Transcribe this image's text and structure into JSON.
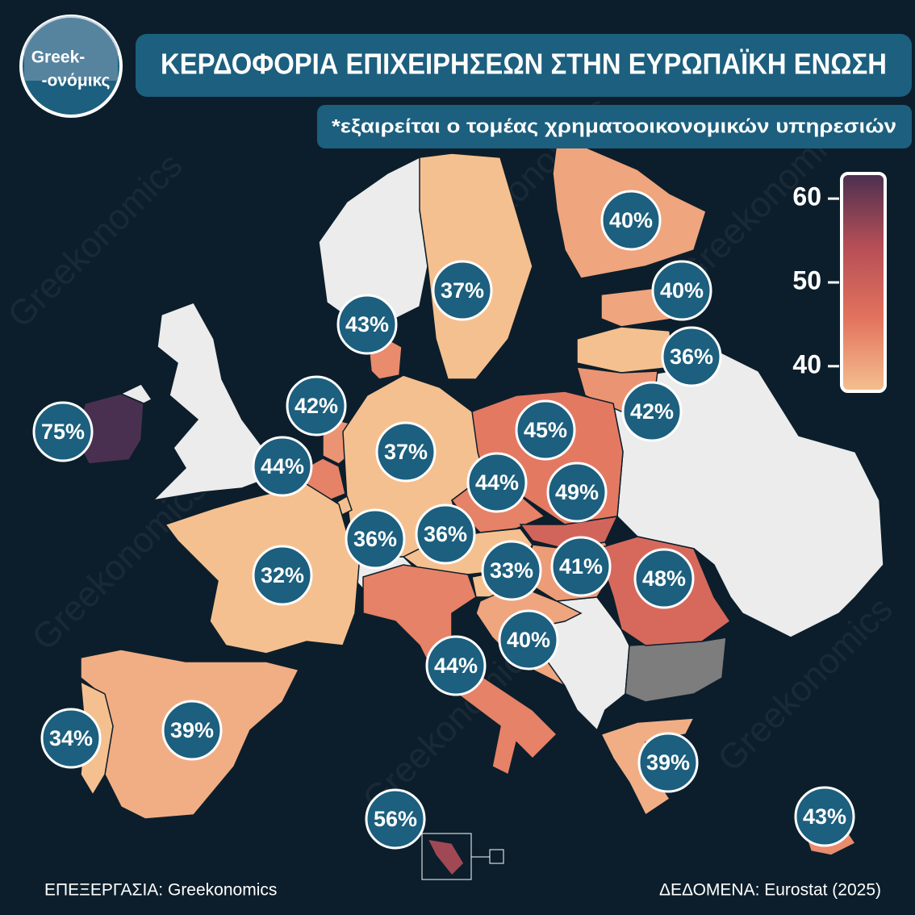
{
  "logo": {
    "line1": "Greek-",
    "line2": "-ονόμικς"
  },
  "title": "ΚΕΡΔΟΦΟΡΙΑ ΕΠΙΧΕΙΡΗΣΕΩΝ ΣΤΗΝ ΕΥΡΩΠΑΪΚΗ ΕΝΩΣΗ",
  "subtitle": "*εξαιρείται ο τομέας χρηματοοικονομικών υπηρεσιών",
  "legend": {
    "range": [
      37,
      63
    ],
    "ticks": [
      40,
      50,
      60
    ],
    "colors": [
      "#f5c08f",
      "#e3735e",
      "#b64e56",
      "#4a3050"
    ]
  },
  "regions": [
    {
      "value": 75,
      "label": "75%"
    },
    {
      "value": 42,
      "label": "42%"
    },
    {
      "value": 44,
      "label": "44%"
    },
    {
      "value": 43,
      "label": "43%"
    },
    {
      "value": 37,
      "label": "37%"
    },
    {
      "value": 40,
      "label": "40%"
    },
    {
      "value": 40,
      "label": "40%"
    },
    {
      "value": 36,
      "label": "36%"
    },
    {
      "value": 42,
      "label": "42%"
    },
    {
      "value": 45,
      "label": "45%"
    },
    {
      "value": 37,
      "label": "37%"
    },
    {
      "value": 44,
      "label": "44%"
    },
    {
      "value": 49,
      "label": "49%"
    },
    {
      "value": 36,
      "label": "36%"
    },
    {
      "value": 36,
      "label": "36%"
    },
    {
      "value": 33,
      "label": "33%"
    },
    {
      "value": 41,
      "label": "41%"
    },
    {
      "value": 48,
      "label": "48%"
    },
    {
      "value": 40,
      "label": "40%"
    },
    {
      "value": 44,
      "label": "44%"
    },
    {
      "value": 32,
      "label": "32%"
    },
    {
      "value": 39,
      "label": "39%"
    },
    {
      "value": 34,
      "label": "34%"
    },
    {
      "value": 39,
      "label": "39%"
    },
    {
      "value": 56,
      "label": "56%"
    },
    {
      "value": 43,
      "label": "43%"
    }
  ],
  "footer": {
    "left": "ΕΠΕΞΕΡΓΑΣΙΑ: Greekonomics",
    "right": "ΔΕΔΟΜΕΝΑ: Eurostat (2025)"
  },
  "watermark": "Greekonomics"
}
